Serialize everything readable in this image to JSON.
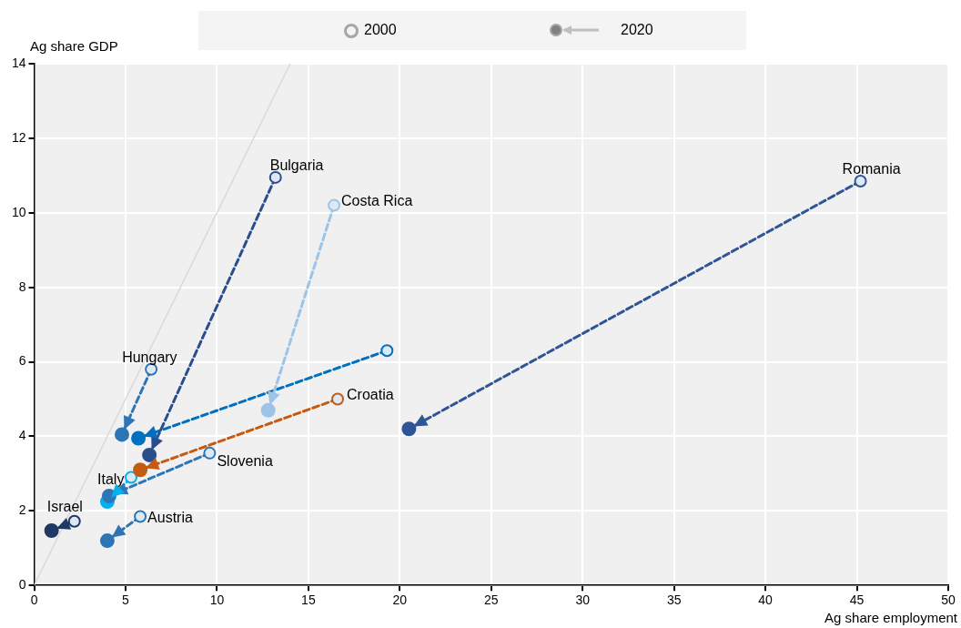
{
  "chart_data": {
    "type": "line",
    "xlabel": "Ag share employment",
    "ylabel": "Ag share GDP",
    "annotations": [
      "2000",
      "2020"
    ],
    "xlim": [
      0,
      50
    ],
    "xticks": [
      0,
      5,
      10,
      15,
      20,
      25,
      30,
      35,
      40,
      45,
      50
    ],
    "ylim": [
      0,
      14
    ],
    "yticks": [
      0,
      2,
      4,
      6,
      8,
      10,
      12,
      14
    ],
    "grid": true,
    "marker": "circle",
    "line_style": "dashed",
    "series": [
      {
        "name": "Romania",
        "color": "#2f5597",
        "x": [
          45.2,
          20.5
        ],
        "values": [
          10.85,
          4.2
        ]
      },
      {
        "name": "Bulgaria",
        "color": "#2b4d8c",
        "x": [
          13.2,
          6.3
        ],
        "values": [
          10.95,
          3.5
        ]
      },
      {
        "name": "Costa Rica",
        "color": "#9dc3e6",
        "x": [
          16.4,
          12.8
        ],
        "values": [
          10.2,
          4.7
        ]
      },
      {
        "name": "Hungary",
        "color": "#2e75b6",
        "x": [
          6.4,
          4.8
        ],
        "values": [
          5.8,
          4.05
        ]
      },
      {
        "color": "#0070c0",
        "x": [
          19.3,
          5.7
        ],
        "values": [
          6.3,
          3.95
        ]
      },
      {
        "name": "Croatia",
        "color": "#c55a11",
        "x": [
          16.6,
          5.8
        ],
        "values": [
          5.0,
          3.1
        ]
      },
      {
        "name": "Slovenia",
        "color": "#2e75b6",
        "x": [
          9.6,
          4.1
        ],
        "values": [
          3.55,
          2.4
        ]
      },
      {
        "name": "Italy",
        "color": "#00b0f0",
        "x": [
          5.3,
          4.0
        ],
        "values": [
          2.9,
          2.25
        ]
      },
      {
        "name": "Austria",
        "color": "#2e75b6",
        "x": [
          5.8,
          4.0
        ],
        "values": [
          1.85,
          1.2
        ]
      },
      {
        "name": "Israel",
        "color": "#1f3864",
        "x": [
          2.2,
          0.95
        ],
        "values": [
          1.72,
          1.47
        ]
      },
      {
        "type": "line",
        "color": "#d9d9d9",
        "x": [
          0,
          14
        ],
        "values": [
          0,
          14
        ],
        "marker": "none",
        "line_style": "solid"
      }
    ]
  }
}
